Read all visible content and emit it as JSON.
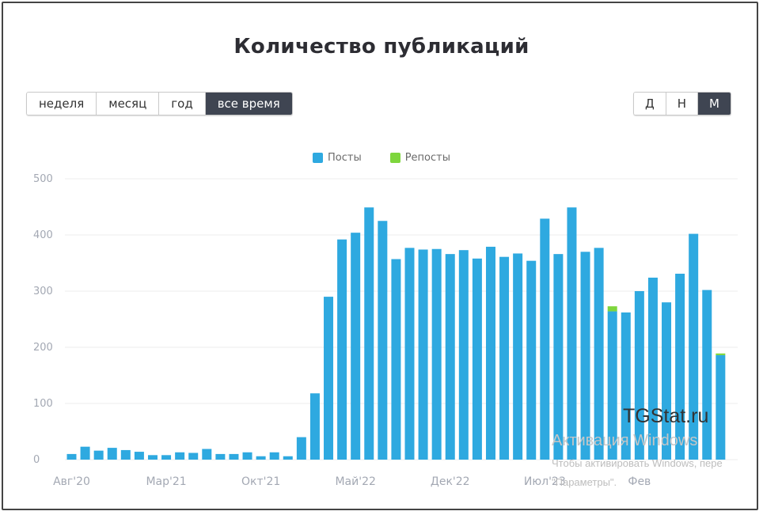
{
  "page": {
    "title": "Количество публикаций",
    "range_buttons": [
      "неделя",
      "месяц",
      "год",
      "все время"
    ],
    "range_active": "все время",
    "granularity_buttons": [
      "Д",
      "Н",
      "М"
    ],
    "granularity_active": "М",
    "watermark": {
      "brand": "TGStat.ru",
      "activate": "Активация Windows",
      "hint_line1": "Чтобы активировать Windows, пере",
      "hint_line2": "\"Параметры\"."
    }
  },
  "colors": {
    "posts": "#2ea9e0",
    "reposts": "#7ed63d",
    "grid": "#ececec",
    "axis_text": "#a3a8b3"
  },
  "chart_data": {
    "type": "bar",
    "stacked": true,
    "grid": true,
    "legend_position": "top-center",
    "ylim": [
      0,
      500
    ],
    "y_ticks": [
      0,
      100,
      200,
      300,
      400,
      500
    ],
    "x_tick_labels": [
      {
        "index": 0,
        "label": "Авг'20"
      },
      {
        "index": 7,
        "label": "Мар'21"
      },
      {
        "index": 14,
        "label": "Окт'21"
      },
      {
        "index": 21,
        "label": "Май'22"
      },
      {
        "index": 28,
        "label": "Дек'22"
      },
      {
        "index": 35,
        "label": "Июл'23"
      },
      {
        "index": 42,
        "label": "Фев"
      }
    ],
    "series": [
      {
        "name": "Посты",
        "values": [
          10,
          23,
          16,
          21,
          17,
          14,
          8,
          8,
          13,
          12,
          19,
          10,
          10,
          13,
          6,
          13,
          6,
          40,
          118,
          290,
          392,
          404,
          449,
          425,
          357,
          377,
          374,
          375,
          366,
          373,
          358,
          379,
          361,
          367,
          354,
          429,
          366,
          449,
          370,
          377,
          264,
          262,
          300,
          324,
          280,
          331,
          402,
          302,
          186
        ]
      },
      {
        "name": "Репосты",
        "values": [
          0,
          0,
          0,
          0,
          0,
          0,
          0,
          0,
          0,
          0,
          0,
          0,
          0,
          0,
          0,
          0,
          0,
          0,
          0,
          0,
          0,
          0,
          0,
          0,
          0,
          0,
          0,
          0,
          0,
          0,
          0,
          0,
          0,
          0,
          0,
          0,
          0,
          0,
          0,
          0,
          9,
          0,
          0,
          0,
          0,
          0,
          0,
          0,
          3
        ]
      }
    ]
  }
}
